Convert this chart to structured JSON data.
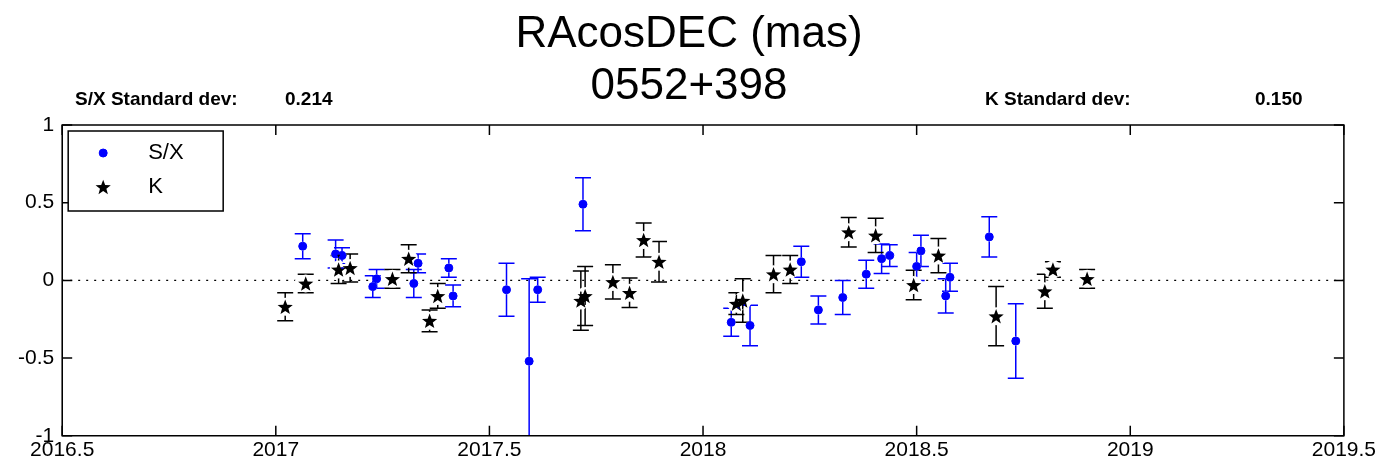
{
  "chart_data": {
    "type": "scatter",
    "title": "RAcosDEC (mas)",
    "subtitle": "0552+398",
    "annotations": [
      "S/X Standard dev:",
      "0.214",
      "K Standard dev:",
      "0.150"
    ],
    "xlim": [
      2016.5,
      2019.5
    ],
    "xticks": [
      2016.5,
      2017,
      2017.5,
      2018,
      2018.5,
      2019,
      2019.5
    ],
    "ylim": [
      -1,
      1
    ],
    "yticks": [
      -1,
      -0.5,
      0,
      0.5,
      1
    ],
    "grid": false,
    "legend": "top left",
    "ref_lines": [
      {
        "axis": "y",
        "value": 0,
        "line_style": "dotted",
        "color": "#000000"
      }
    ],
    "series": [
      {
        "name": "S/X",
        "color": "#0000ff",
        "marker": "circle",
        "x": [
          2017.063,
          2017.14,
          2017.155,
          2017.227,
          2017.236,
          2017.323,
          2017.333,
          2017.405,
          2017.415,
          2017.54,
          2017.593,
          2017.613,
          2017.719,
          2018.066,
          2018.11,
          2018.23,
          2018.27,
          2018.327,
          2018.382,
          2018.418,
          2018.437,
          2018.5,
          2018.51,
          2018.568,
          2018.578,
          2018.67,
          2018.732
        ],
        "values": [
          0.22,
          0.17,
          0.16,
          -0.04,
          0.01,
          -0.02,
          0.11,
          0.08,
          -0.1,
          -0.06,
          -0.52,
          -0.06,
          0.49,
          -0.27,
          -0.29,
          0.12,
          -0.19,
          -0.11,
          0.04,
          0.14,
          0.16,
          0.09,
          0.19,
          -0.1,
          0.02,
          0.28,
          -0.39
        ],
        "errors": [
          0.08,
          0.09,
          0.05,
          0.07,
          0.06,
          0.09,
          0.06,
          0.06,
          0.07,
          0.17,
          [
            -1,
            0.01
          ],
          0.08,
          0.17,
          0.09,
          0.13,
          0.1,
          0.09,
          0.11,
          0.09,
          0.095,
          0.07,
          0.09,
          0.1,
          0.11,
          0.09,
          0.13,
          0.24
        ]
      },
      {
        "name": "K",
        "color": "#000000",
        "marker": "star",
        "x": [
          2017.022,
          2017.07,
          2017.147,
          2017.174,
          2017.273,
          2017.311,
          2017.36,
          2017.379,
          2017.714,
          2017.724,
          2017.789,
          2017.828,
          2017.861,
          2017.897,
          2018.078,
          2018.093,
          2018.165,
          2018.204,
          2018.341,
          2018.404,
          2018.493,
          2018.551,
          2018.686,
          2018.8,
          2018.819,
          2018.899
        ],
        "values": [
          -0.17,
          -0.02,
          0.07,
          0.08,
          0.01,
          0.14,
          -0.26,
          -0.1,
          -0.13,
          -0.1,
          -0.01,
          -0.08,
          0.26,
          0.12,
          -0.15,
          -0.13,
          0.04,
          0.07,
          0.31,
          0.29,
          -0.03,
          0.16,
          -0.23,
          -0.07,
          0.07,
          0.01
        ],
        "errors": [
          0.09,
          0.06,
          0.09,
          0.09,
          0.06,
          0.09,
          0.07,
          0.08,
          0.19,
          0.19,
          0.11,
          0.095,
          0.11,
          0.13,
          0.07,
          0.14,
          0.12,
          0.09,
          0.095,
          0.11,
          0.095,
          0.11,
          0.19,
          0.11,
          0.05,
          0.06
        ]
      }
    ]
  }
}
